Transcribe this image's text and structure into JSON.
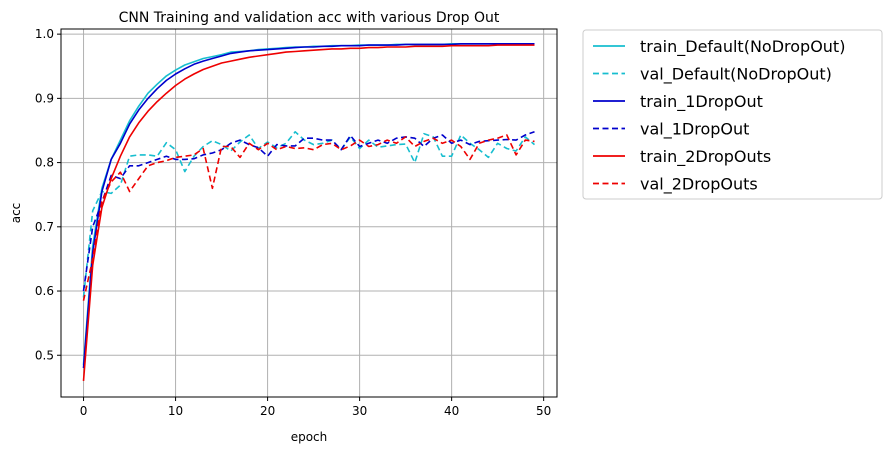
{
  "chart_data": {
    "type": "line",
    "title": "CNN Training and validation acc with various Drop Out",
    "xlabel": "epoch",
    "ylabel": "acc",
    "xlim": [
      -2.45,
      51.45
    ],
    "ylim": [
      0.435,
      1.008
    ],
    "xticks": [
      0,
      10,
      20,
      30,
      40,
      50
    ],
    "yticks": [
      0.5,
      0.6,
      0.7,
      0.8,
      0.9,
      1.0
    ],
    "xtick_labels": [
      "0",
      "10",
      "20",
      "30",
      "40",
      "50"
    ],
    "ytick_labels": [
      "0.5",
      "0.6",
      "0.7",
      "0.8",
      "0.9",
      "1.0"
    ],
    "grid": true,
    "legend_placement": "outside-upper-right",
    "x": [
      0,
      1,
      2,
      3,
      4,
      5,
      6,
      7,
      8,
      9,
      10,
      11,
      12,
      13,
      14,
      15,
      16,
      17,
      18,
      19,
      20,
      21,
      22,
      23,
      24,
      25,
      26,
      27,
      28,
      29,
      30,
      31,
      32,
      33,
      34,
      35,
      36,
      37,
      38,
      39,
      40,
      41,
      42,
      43,
      44,
      45,
      46,
      47,
      48,
      49
    ],
    "series": [
      {
        "name": "train_Default(NoDropOut)",
        "color": "#17becf",
        "dash": "solid",
        "values": [
          0.485,
          0.67,
          0.76,
          0.805,
          0.835,
          0.865,
          0.888,
          0.908,
          0.922,
          0.935,
          0.944,
          0.952,
          0.957,
          0.962,
          0.965,
          0.968,
          0.972,
          0.973,
          0.974,
          0.976,
          0.977,
          0.978,
          0.979,
          0.98,
          0.98,
          0.981,
          0.981,
          0.982,
          0.982,
          0.982,
          0.983,
          0.983,
          0.983,
          0.983,
          0.984,
          0.984,
          0.984,
          0.984,
          0.984,
          0.984,
          0.985,
          0.985,
          0.985,
          0.985,
          0.985,
          0.985,
          0.985,
          0.985,
          0.985,
          0.985
        ]
      },
      {
        "name": "val_Default(NoDropOut)",
        "color": "#17becf",
        "dash": "dashed",
        "values": [
          0.59,
          0.725,
          0.755,
          0.752,
          0.765,
          0.81,
          0.812,
          0.812,
          0.81,
          0.831,
          0.82,
          0.786,
          0.81,
          0.825,
          0.834,
          0.828,
          0.818,
          0.832,
          0.843,
          0.822,
          0.832,
          0.823,
          0.83,
          0.848,
          0.835,
          0.828,
          0.83,
          0.835,
          0.82,
          0.84,
          0.822,
          0.835,
          0.824,
          0.826,
          0.828,
          0.829,
          0.8,
          0.845,
          0.84,
          0.81,
          0.81,
          0.843,
          0.83,
          0.82,
          0.808,
          0.83,
          0.822,
          0.818,
          0.84,
          0.828
        ]
      },
      {
        "name": "train_1DropOut",
        "color": "#0000cc",
        "dash": "solid",
        "values": [
          0.48,
          0.66,
          0.755,
          0.805,
          0.83,
          0.86,
          0.882,
          0.9,
          0.915,
          0.928,
          0.938,
          0.946,
          0.953,
          0.958,
          0.962,
          0.966,
          0.97,
          0.972,
          0.974,
          0.975,
          0.976,
          0.977,
          0.978,
          0.979,
          0.98,
          0.98,
          0.981,
          0.981,
          0.982,
          0.982,
          0.982,
          0.983,
          0.983,
          0.983,
          0.983,
          0.984,
          0.984,
          0.984,
          0.984,
          0.984,
          0.984,
          0.985,
          0.985,
          0.985,
          0.985,
          0.985,
          0.985,
          0.985,
          0.985,
          0.985
        ]
      },
      {
        "name": "val_1DropOut",
        "color": "#0000cc",
        "dash": "dashed",
        "values": [
          0.6,
          0.7,
          0.738,
          0.78,
          0.775,
          0.795,
          0.795,
          0.8,
          0.805,
          0.81,
          0.805,
          0.805,
          0.806,
          0.812,
          0.815,
          0.82,
          0.83,
          0.835,
          0.828,
          0.823,
          0.81,
          0.828,
          0.826,
          0.826,
          0.838,
          0.838,
          0.835,
          0.835,
          0.82,
          0.842,
          0.825,
          0.83,
          0.835,
          0.83,
          0.838,
          0.84,
          0.838,
          0.825,
          0.838,
          0.843,
          0.83,
          0.835,
          0.828,
          0.833,
          0.834,
          0.835,
          0.836,
          0.835,
          0.843,
          0.848
        ]
      },
      {
        "name": "train_2DropOuts",
        "color": "#ee0000",
        "dash": "solid",
        "values": [
          0.46,
          0.64,
          0.73,
          0.775,
          0.81,
          0.84,
          0.862,
          0.88,
          0.895,
          0.908,
          0.92,
          0.93,
          0.938,
          0.945,
          0.95,
          0.955,
          0.958,
          0.961,
          0.964,
          0.966,
          0.968,
          0.97,
          0.972,
          0.973,
          0.974,
          0.975,
          0.976,
          0.977,
          0.977,
          0.978,
          0.978,
          0.979,
          0.979,
          0.98,
          0.98,
          0.98,
          0.981,
          0.981,
          0.981,
          0.981,
          0.982,
          0.982,
          0.982,
          0.982,
          0.982,
          0.983,
          0.983,
          0.983,
          0.983,
          0.983
        ]
      },
      {
        "name": "val_2DropOuts",
        "color": "#ee0000",
        "dash": "dashed",
        "values": [
          0.585,
          0.65,
          0.74,
          0.77,
          0.785,
          0.755,
          0.775,
          0.795,
          0.8,
          0.803,
          0.808,
          0.81,
          0.812,
          0.822,
          0.76,
          0.825,
          0.825,
          0.808,
          0.83,
          0.82,
          0.83,
          0.82,
          0.825,
          0.822,
          0.823,
          0.82,
          0.828,
          0.83,
          0.82,
          0.826,
          0.835,
          0.825,
          0.828,
          0.835,
          0.83,
          0.84,
          0.825,
          0.833,
          0.838,
          0.83,
          0.835,
          0.825,
          0.805,
          0.83,
          0.835,
          0.838,
          0.843,
          0.812,
          0.835,
          0.833
        ]
      }
    ]
  }
}
